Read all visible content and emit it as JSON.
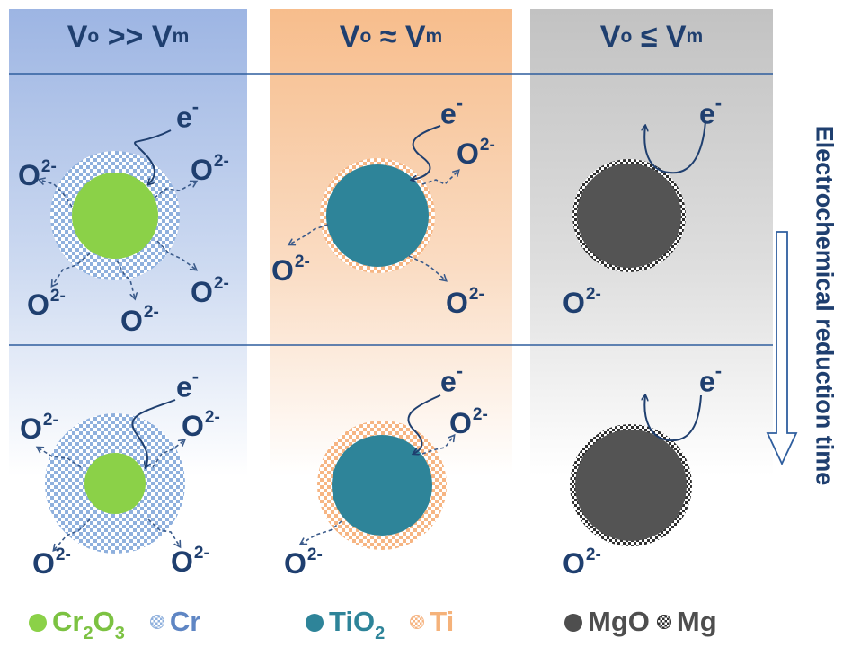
{
  "headers": [
    {
      "base": "V",
      "sub1": "o",
      "relation": ">>",
      "base2": "V",
      "sub2": "m"
    },
    {
      "base": "V",
      "sub1": "o",
      "relation": "≈",
      "base2": "V",
      "sub2": "m"
    },
    {
      "base": "V",
      "sub1": "o",
      "relation": "≤",
      "base2": "V",
      "sub2": "m"
    }
  ],
  "electron": {
    "symbol": "e",
    "charge": "-"
  },
  "oxide_ion": {
    "symbol": "O",
    "charge": "2-"
  },
  "side_title": "Electrochemical reduction time",
  "legend": [
    {
      "oxide_prefix": "Cr",
      "oxide_sub1": "2",
      "oxide_mid": "O",
      "oxide_sub2": "3",
      "metal": "Cr",
      "color": "#8bd148",
      "text_color": "#7cc242"
    },
    {
      "oxide_prefix": "TiO",
      "oxide_sub1": "2",
      "oxide_mid": "",
      "oxide_sub2": "",
      "metal": "Ti",
      "color": "#2e8499",
      "text_color": "#2e8499",
      "metal_color": "#f5b27a"
    },
    {
      "oxide_prefix": "MgO",
      "oxide_sub1": "",
      "oxide_mid": "",
      "oxide_sub2": "",
      "metal": "Mg",
      "color": "#4e4e4e",
      "text_color": "#4e4e4e"
    }
  ],
  "colors": {
    "col1_bg": "#9db5e3",
    "col2_bg": "#f7bd8c",
    "col3_bg": "#c2c2c2",
    "text": "#1f3f6f",
    "divider": "#2f5e9e"
  }
}
